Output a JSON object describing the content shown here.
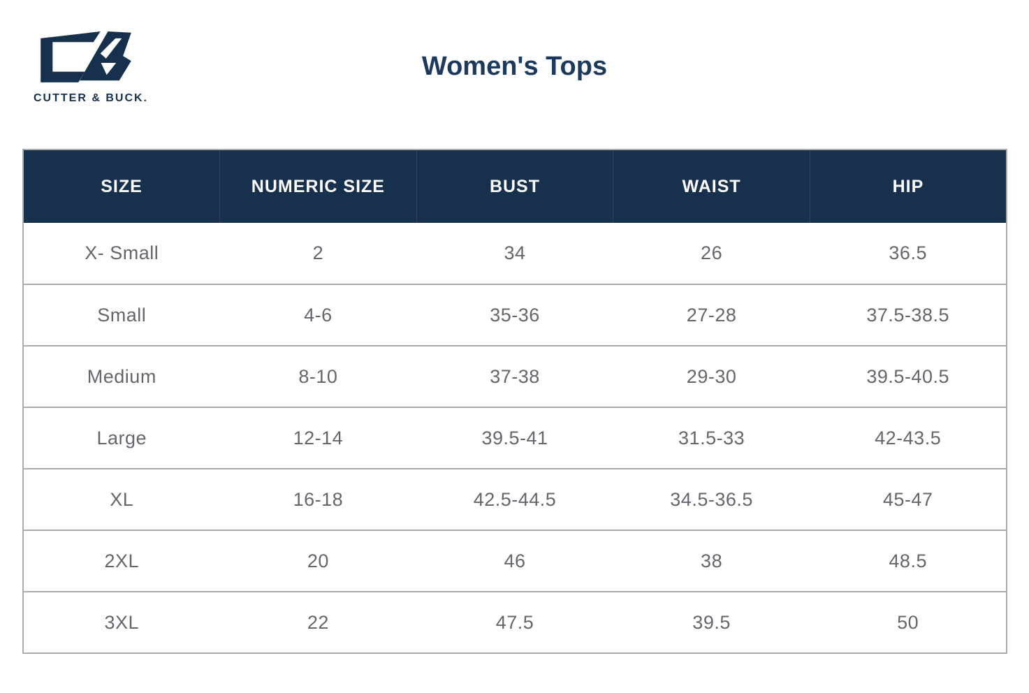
{
  "brand": {
    "logo_icon": "cutter-buck-cb-monogram",
    "logo_text": "CUTTER & BUCK."
  },
  "page_title": "Women's Tops",
  "colors": {
    "header_background_navy": "#16304D",
    "title_navy": "#1B3A5E",
    "header_text": "#FFFFFF",
    "cell_text": "#63676D",
    "row_divider_gray": "#ABABAB"
  },
  "chart_data": {
    "type": "table",
    "title": "Women's Tops",
    "columns": [
      "SIZE",
      "NUMERIC SIZE",
      "BUST",
      "WAIST",
      "HIP"
    ],
    "rows": [
      [
        "X- Small",
        "2",
        "34",
        "26",
        "36.5"
      ],
      [
        "Small",
        "4-6",
        "35-36",
        "27-28",
        "37.5-38.5"
      ],
      [
        "Medium",
        "8-10",
        "37-38",
        "29-30",
        "39.5-40.5"
      ],
      [
        "Large",
        "12-14",
        "39.5-41",
        "31.5-33",
        "42-43.5"
      ],
      [
        "XL",
        "16-18",
        "42.5-44.5",
        "34.5-36.5",
        "45-47"
      ],
      [
        "2XL",
        "20",
        "46",
        "38",
        "48.5"
      ],
      [
        "3XL",
        "22",
        "47.5",
        "39.5",
        "50"
      ]
    ]
  }
}
